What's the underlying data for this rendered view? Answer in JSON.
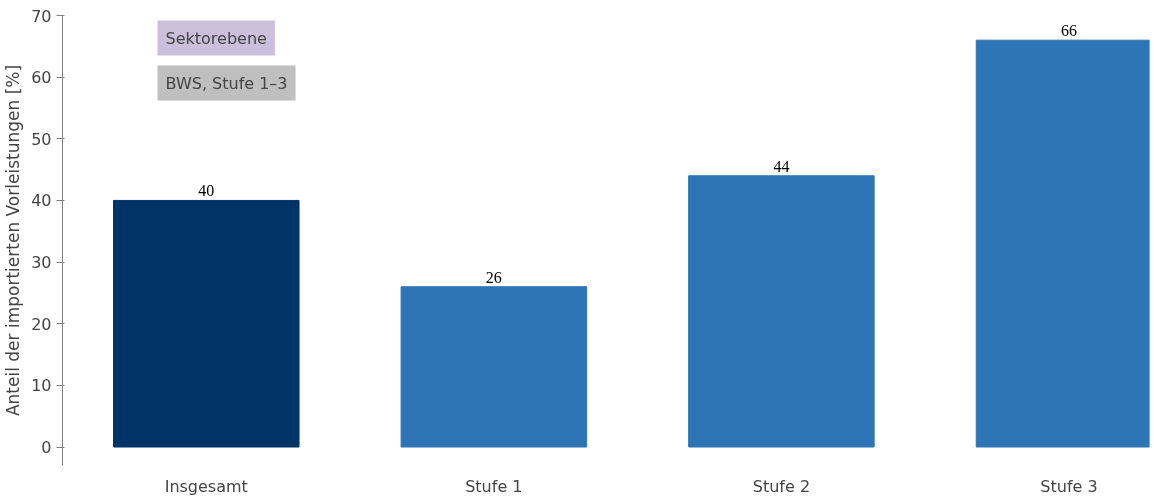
{
  "chart_data": {
    "type": "bar",
    "ylabel": "Anteil der importierten Vorleistungen [%]",
    "categories": [
      "Insgesamt",
      "Stufe 1",
      "Stufe 2",
      "Stufe 3"
    ],
    "values": [
      40,
      26,
      44,
      66
    ],
    "colors": [
      "#003366",
      "#2e75b6",
      "#2e75b6",
      "#2e75b6"
    ],
    "data_labels": true,
    "ylim": [
      -3,
      70
    ],
    "yticks": [
      0,
      10,
      20,
      30,
      40,
      50,
      60,
      70
    ],
    "grid": false,
    "annotations": [
      "Sektorebene",
      "BWS, Stufe 1–3"
    ]
  }
}
